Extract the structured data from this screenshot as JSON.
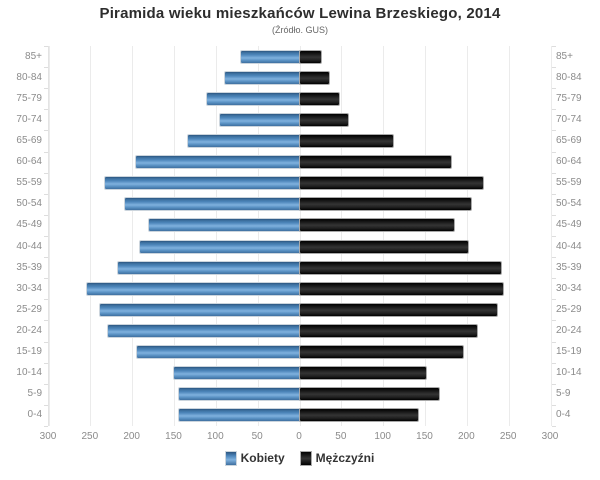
{
  "header": {
    "title": "Piramida wieku mieszkańców Lewina Brzeskiego, 2014",
    "subtitle": "(Źródło. GUS)"
  },
  "legend": {
    "women_label": "Kobiety",
    "men_label": "Mężczyźni"
  },
  "colors": {
    "women": "#4d86bb",
    "men": "#1a1a1a",
    "grid": "#ebebeb",
    "axis": "#dddddd",
    "label_text": "#8b8b8b",
    "title_text": "#2d2d2d"
  },
  "chart_data": {
    "type": "bar",
    "variant": "population-pyramid",
    "title": "Piramida wieku mieszkańców Lewina Brzeskiego, 2014",
    "subtitle": "(Źródło. GUS)",
    "categories": [
      "85+",
      "80-84",
      "75-79",
      "70-74",
      "65-69",
      "60-64",
      "55-59",
      "50-54",
      "45-49",
      "40-44",
      "35-39",
      "30-34",
      "25-29",
      "20-24",
      "15-19",
      "10-14",
      "5-9",
      "0-4"
    ],
    "series": [
      {
        "name": "Kobiety",
        "side": "left",
        "color": "#4d86bb",
        "values": [
          70,
          90,
          111,
          96,
          134,
          196,
          233,
          209,
          181,
          191,
          218,
          254,
          239,
          229,
          195,
          151,
          145,
          145
        ]
      },
      {
        "name": "Mężczyźni",
        "side": "right",
        "color": "#1a1a1a",
        "values": [
          25,
          35,
          47,
          57,
          111,
          180,
          219,
          204,
          184,
          201,
          240,
          243,
          236,
          211,
          195,
          151,
          166,
          141
        ]
      }
    ],
    "x_axis": {
      "max_each_side": 300,
      "tick_step": 50,
      "tick_labels": [
        "300",
        "250",
        "200",
        "150",
        "100",
        "50",
        "0",
        "50",
        "100",
        "150",
        "200",
        "250",
        "300"
      ]
    },
    "grid": true,
    "legend_position": "bottom"
  }
}
